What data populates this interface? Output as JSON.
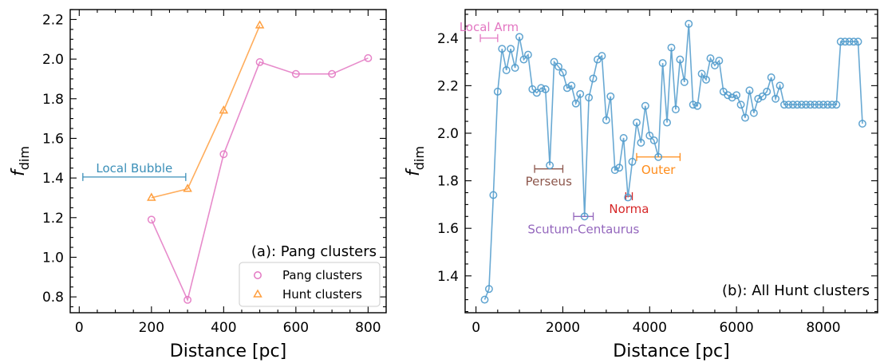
{
  "chart_data": [
    {
      "type": "line",
      "panel_label": "(a): Pang clusters",
      "xlabel": "Distance [pc]",
      "ylabel_main": "f",
      "ylabel_sub": "dim",
      "xlim": [
        -25,
        850
      ],
      "ylim": [
        0.72,
        2.25
      ],
      "xticks": [
        0,
        200,
        400,
        600,
        800
      ],
      "yticks": [
        0.8,
        1.0,
        1.2,
        1.4,
        1.6,
        1.8,
        2.0,
        2.2
      ],
      "ytick_labels": [
        "0.8",
        "1.0",
        "1.2",
        "1.4",
        "1.6",
        "1.8",
        "2.0",
        "2.2"
      ],
      "legend_position": "lower-right",
      "series": [
        {
          "name": "Pang clusters",
          "marker": "circle",
          "color": "#e377c2",
          "x": [
            200,
            300,
            400,
            500,
            600,
            700,
            800
          ],
          "y": [
            1.19,
            0.785,
            1.52,
            1.985,
            1.925,
            1.925,
            2.005
          ]
        },
        {
          "name": "Hunt clusters",
          "marker": "triangle",
          "color": "#ff9f3f",
          "x": [
            200,
            300,
            400,
            500
          ],
          "y": [
            1.3,
            1.345,
            1.74,
            2.17
          ]
        }
      ],
      "annotations": [
        {
          "text": "Local Bubble",
          "x_range": [
            10,
            295
          ],
          "y": 1.405,
          "color": "#3b8fb8"
        }
      ]
    },
    {
      "type": "line",
      "panel_label": "(b): All Hunt clusters",
      "xlabel": "Distance [pc]",
      "ylabel_main": "f",
      "ylabel_sub": "dim",
      "xlim": [
        -250,
        9250
      ],
      "ylim": [
        1.245,
        2.52
      ],
      "xticks": [
        0,
        2000,
        4000,
        6000,
        8000
      ],
      "yticks": [
        1.4,
        1.6,
        1.8,
        2.0,
        2.2,
        2.4
      ],
      "ytick_labels": [
        "1.4",
        "1.6",
        "1.8",
        "2.0",
        "2.2",
        "2.4"
      ],
      "series": [
        {
          "name": "All Hunt clusters",
          "marker": "circle",
          "color": "#4f9acb",
          "x": [
            200,
            300,
            400,
            500,
            600,
            700,
            800,
            900,
            1000,
            1100,
            1200,
            1300,
            1400,
            1500,
            1600,
            1700,
            1800,
            1900,
            2000,
            2100,
            2200,
            2300,
            2400,
            2500,
            2600,
            2700,
            2800,
            2900,
            3000,
            3100,
            3200,
            3300,
            3400,
            3500,
            3600,
            3700,
            3800,
            3900,
            4000,
            4100,
            4200,
            4300,
            4400,
            4500,
            4600,
            4700,
            4800,
            4900,
            5000,
            5100,
            5200,
            5300,
            5400,
            5500,
            5600,
            5700,
            5800,
            5900,
            6000,
            6100,
            6200,
            6300,
            6400,
            6500,
            6600,
            6700,
            6800,
            6900,
            7000,
            7100,
            7200,
            7300,
            7400,
            7500,
            7600,
            7700,
            7800,
            7900,
            8000,
            8100,
            8200,
            8300,
            8400,
            8500,
            8600,
            8700,
            8800,
            8900
          ],
          "y": [
            1.3,
            1.345,
            1.74,
            2.175,
            2.355,
            2.265,
            2.355,
            2.275,
            2.405,
            2.31,
            2.33,
            2.185,
            2.17,
            2.19,
            2.185,
            1.865,
            2.3,
            2.28,
            2.255,
            2.19,
            2.2,
            2.125,
            2.165,
            1.65,
            2.15,
            2.23,
            2.31,
            2.325,
            2.055,
            2.155,
            1.845,
            1.855,
            1.98,
            1.73,
            1.88,
            2.045,
            1.96,
            2.115,
            1.99,
            1.97,
            1.9,
            2.295,
            2.045,
            2.36,
            2.1,
            2.31,
            2.215,
            2.46,
            2.12,
            2.115,
            2.25,
            2.225,
            2.315,
            2.285,
            2.305,
            2.175,
            2.16,
            2.15,
            2.16,
            2.12,
            2.065,
            2.18,
            2.085,
            2.145,
            2.155,
            2.175,
            2.235,
            2.145,
            2.2,
            2.12,
            2.12,
            2.12,
            2.12,
            2.12,
            2.12,
            2.12,
            2.12,
            2.12,
            2.12,
            2.12,
            2.12,
            2.12,
            2.385,
            2.385,
            2.385,
            2.385,
            2.385,
            2.04
          ]
        }
      ],
      "annotations": [
        {
          "text": "Local Arm",
          "x_range": [
            100,
            500
          ],
          "y": 2.4,
          "color": "#e377c2",
          "label_pos": "above"
        },
        {
          "text": "Perseus",
          "x_range": [
            1350,
            2000
          ],
          "y": 1.85,
          "color": "#8c564b",
          "label_pos": "below"
        },
        {
          "text": "Scutum-Centaurus",
          "x_range": [
            2250,
            2700
          ],
          "y": 1.65,
          "color": "#9467bd",
          "label_pos": "below"
        },
        {
          "text": "Norma",
          "x_range": [
            3450,
            3600
          ],
          "y": 1.735,
          "color": "#d62728",
          "label_pos": "below"
        },
        {
          "text": "Outer",
          "x_range": [
            3700,
            4700
          ],
          "y": 1.9,
          "color": "#ff8c1a",
          "label_pos": "below"
        }
      ]
    }
  ]
}
